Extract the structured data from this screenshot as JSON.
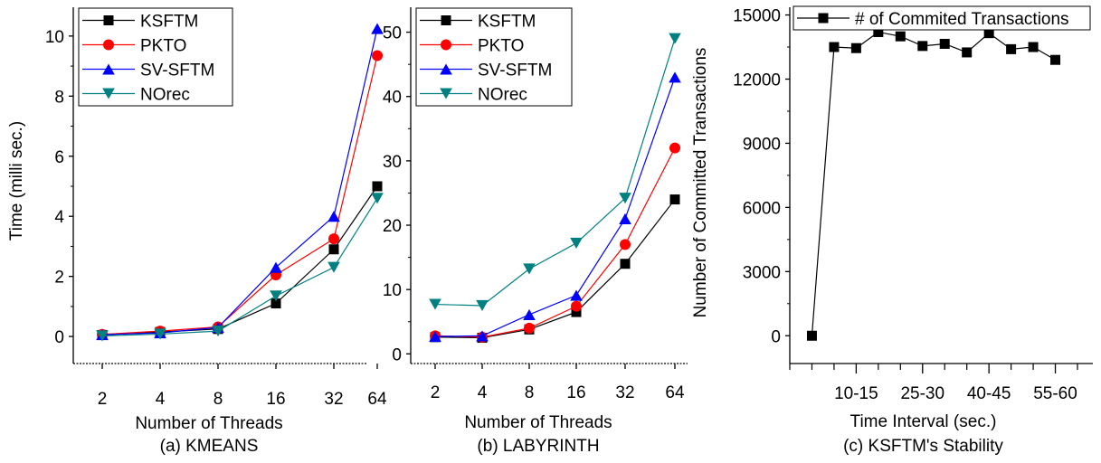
{
  "chart_data": [
    {
      "type": "line",
      "caption": "(a) KMEANS",
      "xlabel": "Number of Threads",
      "ylabel": "Time (milli sec.)",
      "categories": [
        "2",
        "4",
        "8",
        "16",
        "32",
        "64"
      ],
      "ylim": [
        -0.9,
        11.2
      ],
      "yticks": [
        0,
        2,
        4,
        6,
        8,
        10
      ],
      "legend_position": "top-left",
      "series": [
        {
          "name": "KSFTM",
          "color": "#000000",
          "marker": "square",
          "values": [
            0.05,
            0.15,
            0.25,
            1.1,
            2.9,
            5.0
          ]
        },
        {
          "name": "PKTO",
          "color": "#ff0000",
          "marker": "circle",
          "values": [
            0.07,
            0.18,
            0.32,
            2.05,
            3.25,
            9.35
          ]
        },
        {
          "name": "SV-SFTM",
          "color": "#0000ff",
          "marker": "triangle-up",
          "values": [
            0.06,
            0.12,
            0.3,
            2.3,
            4.0,
            10.25
          ]
        },
        {
          "name": "NOrec",
          "color": "#008080",
          "marker": "triangle-down",
          "values": [
            0.02,
            0.08,
            0.18,
            1.35,
            2.3,
            4.6
          ]
        }
      ]
    },
    {
      "type": "line",
      "caption": "(b) LABYRINTH",
      "xlabel": "Number of Threads",
      "ylabel": "",
      "categories": [
        "2",
        "4",
        "8",
        "16",
        "32",
        "64"
      ],
      "ylim": [
        -1.5,
        55
      ],
      "yticks": [
        0,
        10,
        20,
        30,
        40,
        50
      ],
      "legend_position": "top-left",
      "series": [
        {
          "name": "KSFTM",
          "color": "#000000",
          "marker": "square",
          "values": [
            2.6,
            2.5,
            3.8,
            6.5,
            14.0,
            24.0
          ]
        },
        {
          "name": "PKTO",
          "color": "#ff0000",
          "marker": "circle",
          "values": [
            2.8,
            2.6,
            4.0,
            7.4,
            17.0,
            32.0
          ]
        },
        {
          "name": "SV-SFTM",
          "color": "#0000ff",
          "marker": "triangle-up",
          "values": [
            2.7,
            2.8,
            6.1,
            9.1,
            21.0,
            43.0
          ]
        },
        {
          "name": "NOrec",
          "color": "#008080",
          "marker": "triangle-down",
          "values": [
            7.7,
            7.5,
            13.2,
            17.2,
            24.2,
            49.0
          ]
        }
      ]
    },
    {
      "type": "line",
      "caption": "(c) KSFTM's Stability",
      "xlabel": "Time Interval (sec.)",
      "ylabel": "Number of Committed Transactions",
      "x_range": [
        0,
        13
      ],
      "x": [
        1,
        2,
        3,
        4,
        5,
        6,
        7,
        8,
        9,
        10,
        11,
        12
      ],
      "xticks": [
        {
          "x": 3,
          "label": "10-15"
        },
        {
          "x": 6,
          "label": "25-30"
        },
        {
          "x": 9,
          "label": "40-45"
        },
        {
          "x": 12,
          "label": "55-60"
        }
      ],
      "xticks_minor": [
        0,
        1,
        2,
        4,
        5,
        7,
        8,
        10,
        11,
        13
      ],
      "ylim": [
        -1300,
        15700
      ],
      "yticks": [
        0,
        3000,
        6000,
        9000,
        12000,
        15000
      ],
      "legend_position": "top-right",
      "series": [
        {
          "name": "# of Commited Transactions",
          "color": "#000000",
          "marker": "square",
          "values": [
            0,
            13500,
            13450,
            14200,
            14000,
            13550,
            13650,
            13250,
            14150,
            13400,
            13500,
            12900
          ]
        }
      ]
    }
  ]
}
